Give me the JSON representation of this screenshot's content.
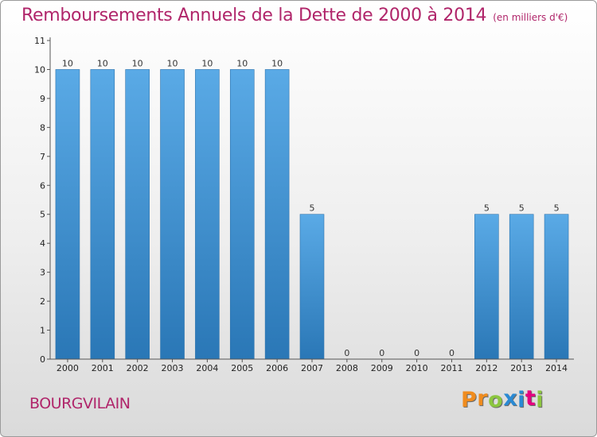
{
  "chart_data": {
    "type": "bar",
    "title": "Remboursements Annuels de la Dette de 2000 à 2014",
    "subtitle": "(en milliers d'€)",
    "xlabel": "",
    "ylabel": "",
    "categories": [
      "2000",
      "2001",
      "2002",
      "2003",
      "2004",
      "2005",
      "2006",
      "2007",
      "2008",
      "2009",
      "2010",
      "2011",
      "2012",
      "2013",
      "2014"
    ],
    "values": [
      10,
      10,
      10,
      10,
      10,
      10,
      10,
      5,
      0,
      0,
      0,
      0,
      5,
      5,
      5
    ],
    "ylim": [
      0,
      11
    ],
    "yticks": [
      0,
      1,
      2,
      3,
      4,
      5,
      6,
      7,
      8,
      9,
      10,
      11
    ],
    "grid": false,
    "legend": "none",
    "colors": {
      "bar_top": "#5aaae6",
      "bar_bottom": "#2a77b6",
      "accent": "#b0256a"
    }
  },
  "footer": {
    "commune": "BOURGVILAIN",
    "logo_letters": [
      {
        "ch": "P",
        "color": "#f08c1e"
      },
      {
        "ch": "r",
        "color": "#f08c1e"
      },
      {
        "ch": "o",
        "color": "#8cc63f"
      },
      {
        "ch": "x",
        "color": "#2a8ad4"
      },
      {
        "ch": "i",
        "color": "#2a8ad4"
      },
      {
        "ch": "t",
        "color": "#e4007f"
      },
      {
        "ch": "i",
        "color": "#8cc63f"
      }
    ]
  }
}
